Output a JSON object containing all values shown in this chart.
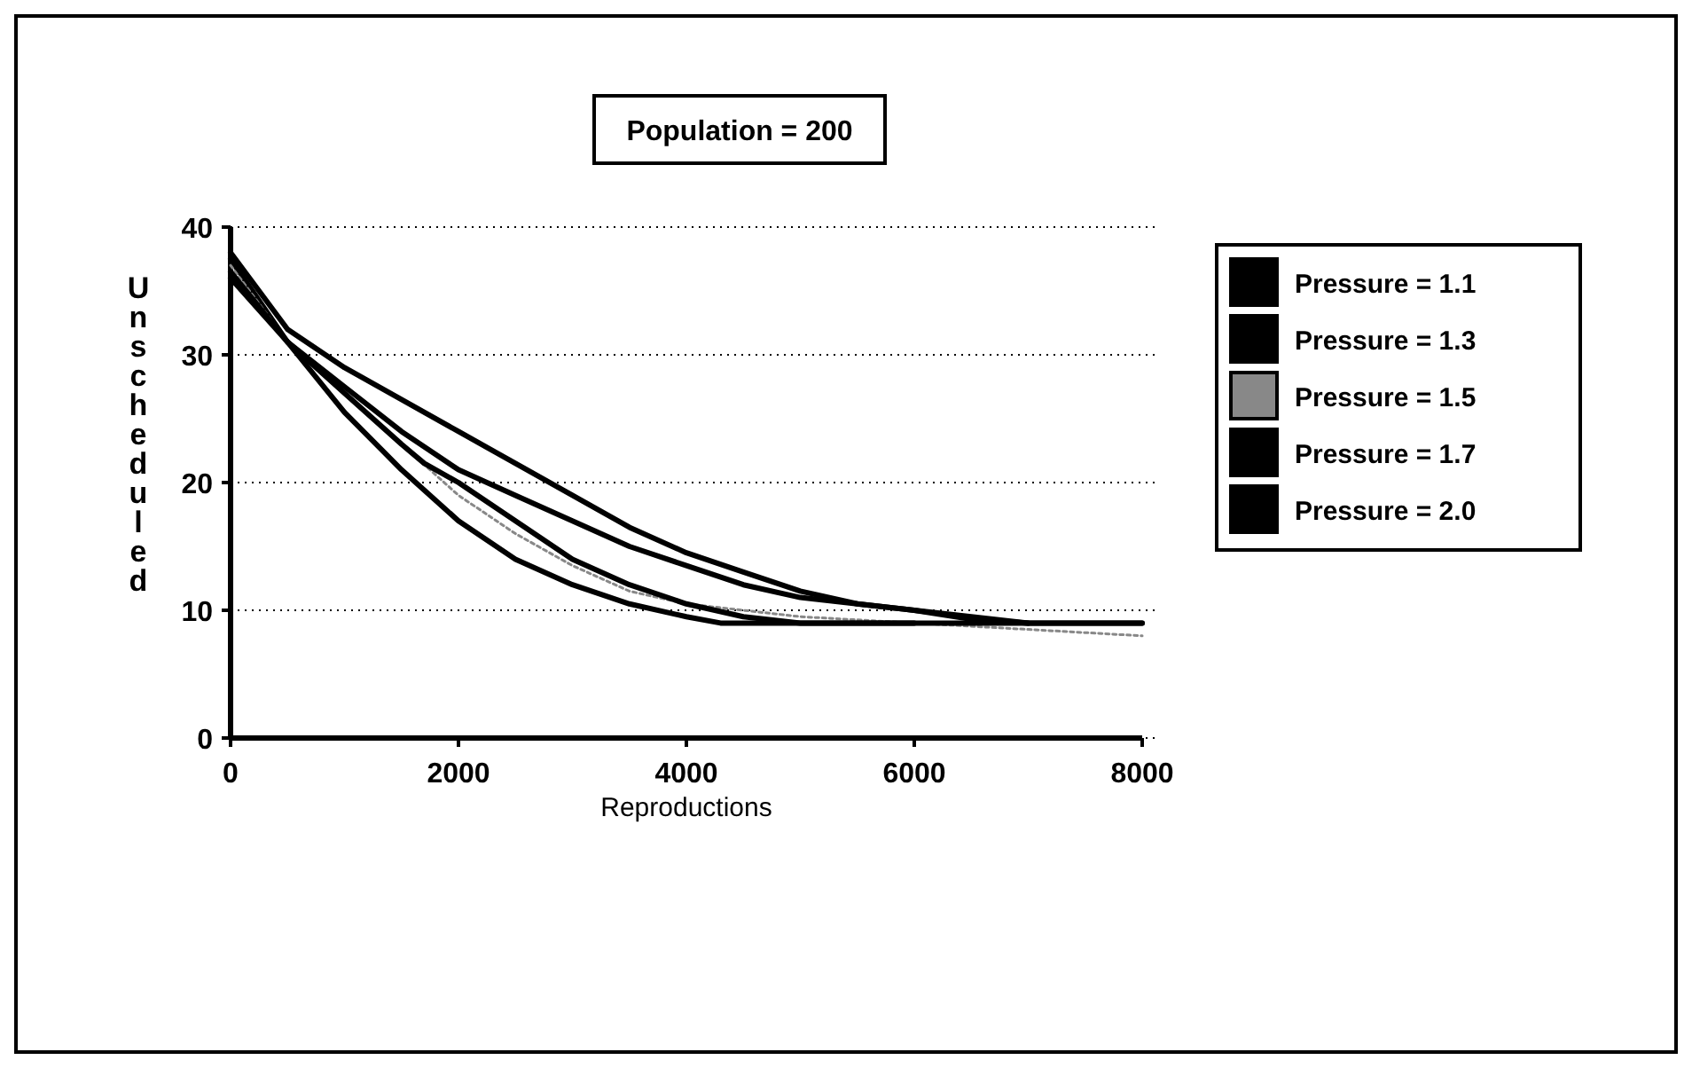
{
  "chart_data": {
    "type": "line",
    "title": "Population = 200",
    "xlabel": "Reproductions",
    "ylabel": "Unscheduled",
    "xlim": [
      0,
      8000
    ],
    "xticks": [
      0,
      2000,
      4000,
      6000,
      8000
    ],
    "ylim": [
      0,
      40
    ],
    "yticks": [
      0,
      10,
      20,
      30,
      40
    ],
    "grid": "y",
    "legend": "right",
    "series": [
      {
        "name": "Pressure = 1.1",
        "color": "#000000",
        "x": [
          0,
          500,
          1000,
          1500,
          2000,
          2500,
          3000,
          3500,
          4000,
          4500,
          5000,
          5500,
          6000,
          6500,
          7000,
          8000
        ],
        "values": [
          38,
          32,
          29,
          26.5,
          24,
          21.5,
          19,
          16.5,
          14.5,
          13,
          11.5,
          10.5,
          10,
          9.5,
          9,
          9
        ]
      },
      {
        "name": "Pressure = 1.3",
        "color": "#000000",
        "x": [
          0,
          500,
          1000,
          1500,
          2000,
          2500,
          3000,
          3500,
          4000,
          4500,
          5000,
          5500,
          6000,
          6500,
          7000,
          8000
        ],
        "values": [
          37.5,
          31,
          27.5,
          24,
          21,
          19,
          17,
          15,
          13.5,
          12,
          11,
          10.5,
          10,
          9.3,
          9,
          9
        ]
      },
      {
        "name": "Pressure = 1.5",
        "color": "#888888",
        "line_style": "dotted",
        "x": [
          0,
          500,
          1000,
          1500,
          2000,
          2500,
          3000,
          3500,
          4000,
          4500,
          5000,
          6000,
          7000,
          8000
        ],
        "values": [
          37,
          31,
          27,
          23,
          19,
          16,
          13.5,
          11.5,
          10.5,
          10,
          9.5,
          9,
          8.5,
          8
        ]
      },
      {
        "name": "Pressure = 1.7",
        "color": "#000000",
        "x": [
          0,
          500,
          1000,
          1500,
          1700,
          2000,
          2500,
          3000,
          3500,
          4000,
          4500,
          5000,
          7000
        ],
        "values": [
          36.5,
          31,
          27,
          23,
          21.5,
          20,
          17,
          14,
          12,
          10.5,
          9.5,
          9,
          9
        ]
      },
      {
        "name": "Pressure = 2.0",
        "color": "#000000",
        "x": [
          0,
          500,
          1000,
          1500,
          2000,
          2500,
          3000,
          3500,
          4000,
          4300,
          6000
        ],
        "values": [
          36,
          31,
          25.5,
          21,
          17,
          14,
          12,
          10.5,
          9.5,
          9,
          9
        ]
      }
    ]
  }
}
